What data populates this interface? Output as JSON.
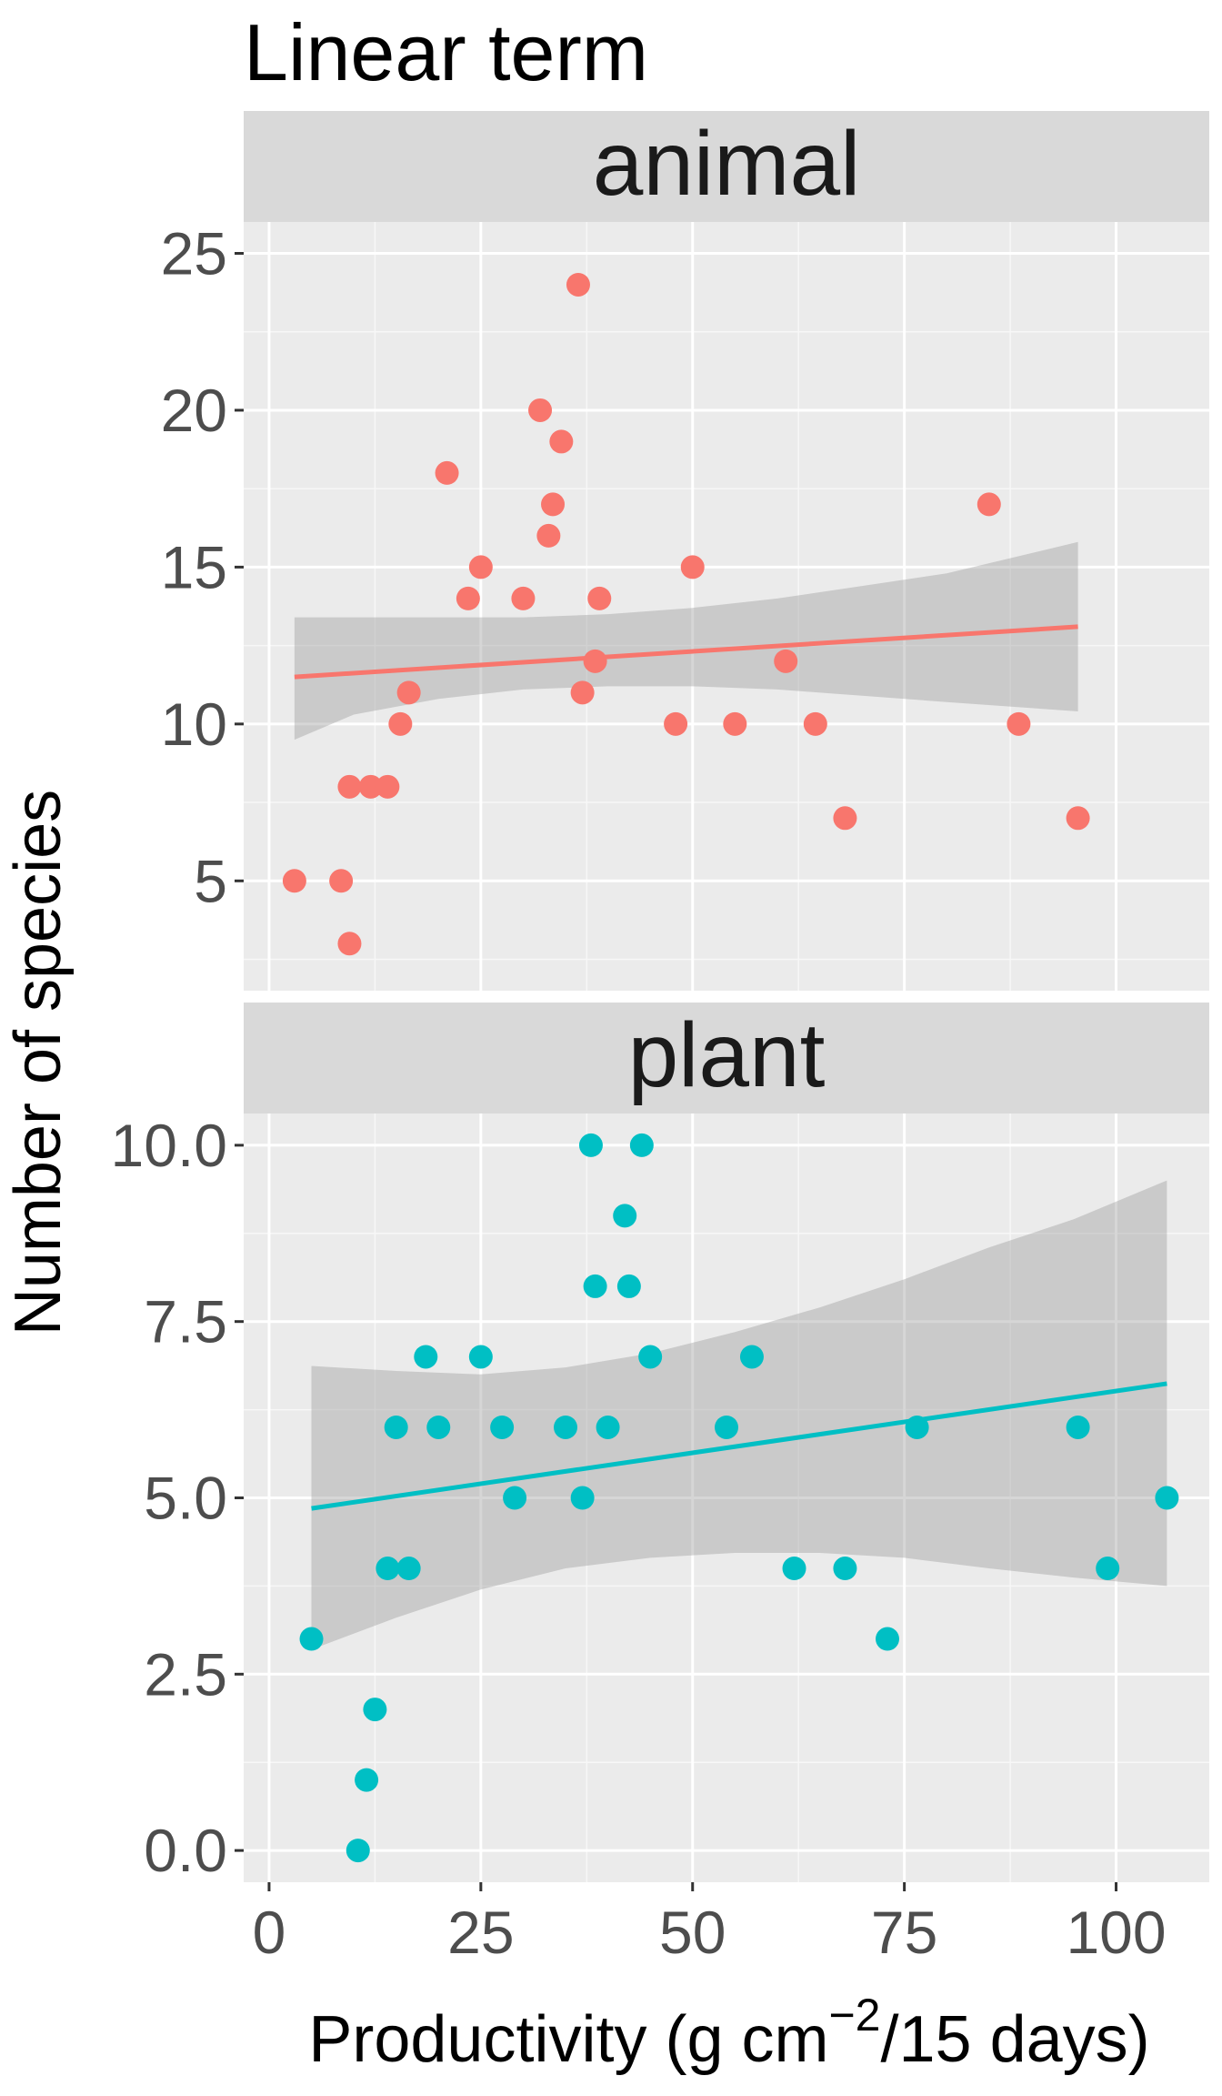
{
  "chart_data": {
    "type": "scatter",
    "title": "Linear term",
    "xlabel_main": "Productivity (g cm",
    "xlabel_sup": "−2",
    "xlabel_tail": "/15 days)",
    "ylabel": "Number of species",
    "xlim": [
      -3,
      111
    ],
    "x_ticks": [
      0,
      25,
      50,
      75,
      100
    ],
    "grid": true,
    "facets": [
      {
        "strip": "animal",
        "color": "#F8766D",
        "ylim": [
          1.5,
          26
        ],
        "y_ticks": [
          5,
          10,
          15,
          20,
          25
        ],
        "y_tick_labels": [
          "5",
          "10",
          "15",
          "20",
          "25"
        ],
        "points": [
          {
            "x": 3,
            "y": 5
          },
          {
            "x": 8.5,
            "y": 5
          },
          {
            "x": 9.5,
            "y": 3
          },
          {
            "x": 9.5,
            "y": 8
          },
          {
            "x": 12,
            "y": 8
          },
          {
            "x": 14,
            "y": 8
          },
          {
            "x": 15.5,
            "y": 10
          },
          {
            "x": 16.5,
            "y": 11
          },
          {
            "x": 21,
            "y": 18
          },
          {
            "x": 23.5,
            "y": 14
          },
          {
            "x": 25,
            "y": 15
          },
          {
            "x": 30,
            "y": 14
          },
          {
            "x": 32,
            "y": 20
          },
          {
            "x": 33,
            "y": 16
          },
          {
            "x": 33.5,
            "y": 17
          },
          {
            "x": 34.5,
            "y": 19
          },
          {
            "x": 36.5,
            "y": 24
          },
          {
            "x": 37,
            "y": 11
          },
          {
            "x": 38.5,
            "y": 12
          },
          {
            "x": 39,
            "y": 14
          },
          {
            "x": 48,
            "y": 10
          },
          {
            "x": 50,
            "y": 15
          },
          {
            "x": 55,
            "y": 10
          },
          {
            "x": 61,
            "y": 12
          },
          {
            "x": 64.5,
            "y": 10
          },
          {
            "x": 68,
            "y": 7
          },
          {
            "x": 85,
            "y": 17
          },
          {
            "x": 88.5,
            "y": 10
          },
          {
            "x": 95.5,
            "y": 7
          }
        ],
        "fit": {
          "x": [
            3,
            95.5
          ],
          "y": [
            11.5,
            13.1
          ]
        },
        "band": {
          "x": [
            3,
            10,
            20,
            30,
            40,
            50,
            60,
            70,
            80,
            95.5
          ],
          "lower": [
            9.5,
            10.3,
            10.8,
            11.1,
            11.2,
            11.2,
            11.1,
            10.9,
            10.7,
            10.4
          ],
          "upper": [
            13.4,
            13.4,
            13.4,
            13.4,
            13.5,
            13.7,
            14.0,
            14.4,
            14.8,
            15.8
          ]
        }
      },
      {
        "strip": "plant",
        "color": "#00BFC4",
        "ylim": [
          -0.45,
          10.45
        ],
        "y_ticks": [
          0,
          2.5,
          5,
          7.5,
          10
        ],
        "y_tick_labels": [
          "0.0",
          "2.5",
          "5.0",
          "7.5",
          "10.0"
        ],
        "points": [
          {
            "x": 5,
            "y": 3
          },
          {
            "x": 10.5,
            "y": 0
          },
          {
            "x": 11.5,
            "y": 1
          },
          {
            "x": 12.5,
            "y": 2
          },
          {
            "x": 14,
            "y": 4
          },
          {
            "x": 15,
            "y": 6
          },
          {
            "x": 16.5,
            "y": 4
          },
          {
            "x": 18.5,
            "y": 7
          },
          {
            "x": 20,
            "y": 6
          },
          {
            "x": 25,
            "y": 7
          },
          {
            "x": 27.5,
            "y": 6
          },
          {
            "x": 29,
            "y": 5
          },
          {
            "x": 35,
            "y": 6
          },
          {
            "x": 37,
            "y": 5
          },
          {
            "x": 38,
            "y": 10
          },
          {
            "x": 38.5,
            "y": 8
          },
          {
            "x": 40,
            "y": 6
          },
          {
            "x": 42,
            "y": 9
          },
          {
            "x": 42.5,
            "y": 8
          },
          {
            "x": 44,
            "y": 10
          },
          {
            "x": 45,
            "y": 7
          },
          {
            "x": 54,
            "y": 6
          },
          {
            "x": 57,
            "y": 7
          },
          {
            "x": 62,
            "y": 4
          },
          {
            "x": 68,
            "y": 4
          },
          {
            "x": 73,
            "y": 3
          },
          {
            "x": 76.5,
            "y": 6
          },
          {
            "x": 95.5,
            "y": 6
          },
          {
            "x": 99,
            "y": 4
          },
          {
            "x": 106,
            "y": 5
          }
        ],
        "fit": {
          "x": [
            5,
            106
          ],
          "y": [
            4.85,
            6.62
          ]
        },
        "band": {
          "x": [
            5,
            15,
            25,
            35,
            45,
            55,
            65,
            75,
            85,
            95,
            106
          ],
          "lower": [
            2.85,
            3.3,
            3.7,
            4.0,
            4.15,
            4.22,
            4.22,
            4.15,
            4.0,
            3.87,
            3.75
          ],
          "upper": [
            6.87,
            6.8,
            6.75,
            6.85,
            7.05,
            7.35,
            7.7,
            8.1,
            8.55,
            8.95,
            9.5
          ]
        }
      }
    ]
  }
}
